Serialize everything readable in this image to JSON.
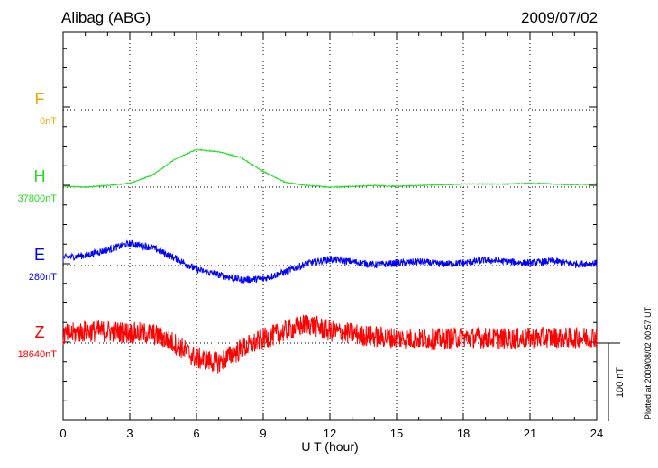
{
  "header": {
    "station": "Alibag (ABG)",
    "date": "2009/07/02"
  },
  "side_note": "Plotted at 2009/08/02 00:57 UT",
  "chart_data": {
    "type": "line",
    "title": "Alibag (ABG)",
    "xlabel": "U T (hour)",
    "xlim": [
      0,
      24
    ],
    "xticks": [
      "0",
      "3",
      "6",
      "9",
      "12",
      "15",
      "18",
      "21",
      "24"
    ],
    "scale_bar_label": "100 nT",
    "grid": "dotted baselines per component, vertical dotted lines every 3 h",
    "series": [
      {
        "name": "F",
        "baseline": "0nT",
        "color": "#f0a800",
        "hours": [],
        "values": []
      },
      {
        "name": "H",
        "baseline": "37800nT",
        "color": "#22dd22",
        "hours": [
          0,
          1,
          2,
          3,
          4,
          5,
          6,
          7,
          8,
          9,
          10,
          11,
          12,
          13,
          14,
          15,
          16,
          17,
          18,
          19,
          20,
          21,
          22,
          23,
          24
        ],
        "values": [
          37801,
          37800,
          37802,
          37805,
          37815,
          37835,
          37848,
          37845,
          37838,
          37820,
          37806,
          37802,
          37800,
          37801,
          37802,
          37801,
          37802,
          37803,
          37804,
          37804,
          37804,
          37805,
          37804,
          37803,
          37804
        ]
      },
      {
        "name": "E",
        "baseline": "280nT",
        "color": "#0000ff",
        "hours": [
          0,
          1,
          2,
          3,
          4,
          5,
          6,
          7,
          8,
          9,
          10,
          11,
          12,
          13,
          14,
          15,
          16,
          17,
          18,
          19,
          20,
          21,
          22,
          23,
          24
        ],
        "values": [
          290,
          293,
          300,
          308,
          303,
          290,
          275,
          268,
          262,
          263,
          272,
          283,
          288,
          285,
          281,
          283,
          285,
          282,
          283,
          287,
          285,
          283,
          286,
          282,
          283
        ]
      },
      {
        "name": "Z",
        "baseline": "18640nT",
        "color": "#ff0000",
        "hours": [
          0,
          1,
          2,
          3,
          4,
          5,
          6,
          7,
          8,
          9,
          10,
          11,
          12,
          13,
          14,
          15,
          16,
          17,
          18,
          19,
          20,
          21,
          22,
          23,
          24
        ],
        "values": [
          18650,
          18655,
          18655,
          18653,
          18652,
          18640,
          18620,
          18615,
          18632,
          18645,
          18655,
          18665,
          18655,
          18652,
          18648,
          18646,
          18645,
          18645,
          18647,
          18646,
          18645,
          18646,
          18647,
          18646,
          18648
        ]
      }
    ]
  }
}
